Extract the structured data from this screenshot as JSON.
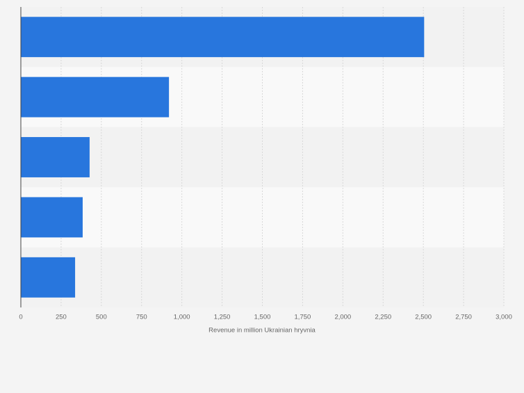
{
  "chart_data": {
    "type": "bar",
    "orientation": "horizontal",
    "categories": [
      null,
      null,
      null,
      null,
      null
    ],
    "values": [
      2505,
      920,
      427,
      384,
      337
    ],
    "color": "#2876dd",
    "x_label": "Revenue in million Ukrainian hryvnia",
    "xlim": [
      0,
      3000
    ],
    "xticks": [
      0,
      250,
      500,
      750,
      {
        "value": 1000,
        "label": "1,000"
      },
      {
        "value": 1250,
        "label": "1,250"
      },
      {
        "value": 1500,
        "label": "1,500"
      },
      {
        "value": 1750,
        "label": "1,750"
      },
      {
        "value": 2000,
        "label": "2,000"
      },
      {
        "value": 2250,
        "label": "2,250"
      },
      {
        "value": 2500,
        "label": "2,500"
      },
      {
        "value": 2750,
        "label": "2,750"
      },
      {
        "value": 3000,
        "label": "3,000"
      }
    ],
    "grid": true
  }
}
